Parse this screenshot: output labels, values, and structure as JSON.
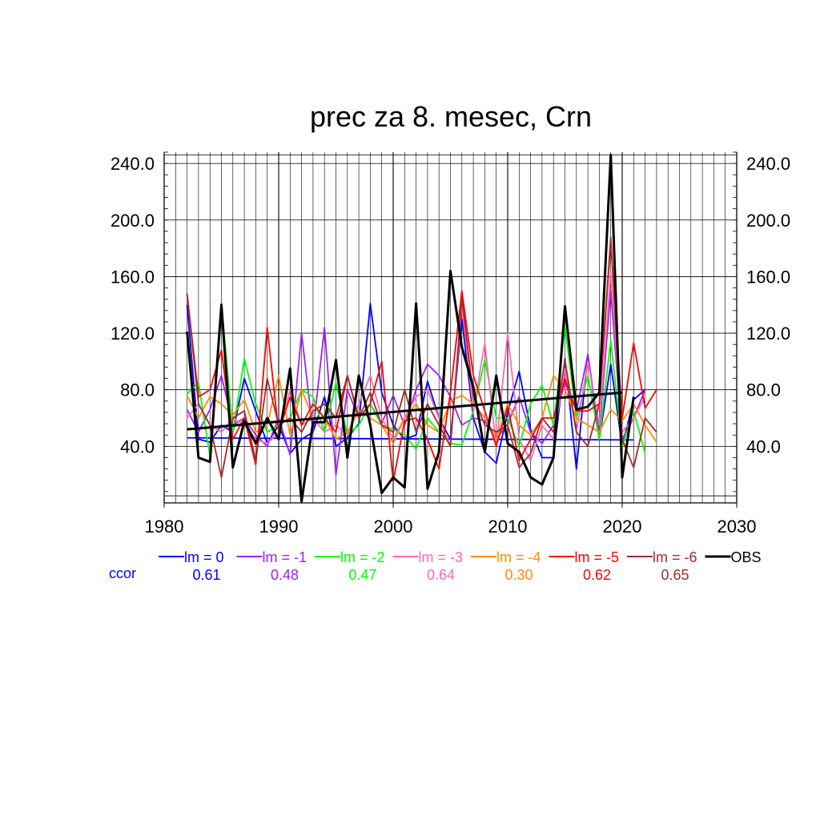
{
  "chart_data": {
    "type": "line",
    "title": "prec za 8. mesec, Crn",
    "xlim": [
      1980,
      2030
    ],
    "ylim": [
      0,
      248
    ],
    "x_ticks": [
      1980,
      1990,
      2000,
      2010,
      2020,
      2030
    ],
    "x_tick_labels": [
      "1980",
      "1990",
      "2000",
      "2010",
      "2020",
      "2030"
    ],
    "y_ticks": [
      40,
      80,
      120,
      160,
      200,
      240
    ],
    "y_tick_labels": [
      "40.0",
      "80.0",
      "120.0",
      "160.0",
      "200.0",
      "240.0"
    ],
    "grid": true,
    "ccor_label": "ccor",
    "series": [
      {
        "name": "lm = 0",
        "color": "#0000ff",
        "ccor": "0.61",
        "start_year": 1982,
        "values": [
          140,
          45,
          43,
          55,
          50,
          88,
          65,
          42,
          55,
          35,
          45,
          50,
          75,
          40,
          46,
          56,
          141,
          78,
          55,
          45,
          48,
          86,
          60,
          45,
          130,
          60,
          36,
          28,
          64,
          93,
          52,
          32,
          32,
          102,
          24,
          105,
          45,
          98,
          40,
          73,
          80
        ],
        "trend": [
          46,
          44.5
        ]
      },
      {
        "name": "lm = -1",
        "color": "#a020f0",
        "ccor": "0.48",
        "start_year": 1982,
        "values": [
          66,
          50,
          66,
          90,
          55,
          60,
          48,
          40,
          60,
          34,
          120,
          50,
          124,
          20,
          80,
          60,
          70,
          56,
          76,
          55,
          80,
          98,
          90,
          75,
          55,
          60,
          58,
          45,
          56,
          75,
          50,
          42,
          55,
          85,
          65,
          105,
          50,
          150,
          45,
          60,
          80
        ]
      },
      {
        "name": "lm = -2",
        "color": "#00ff00",
        "ccor": "0.47",
        "start_year": 1982,
        "values": [
          77,
          85,
          33,
          142,
          50,
          102,
          70,
          50,
          55,
          60,
          80,
          75,
          50,
          85,
          48,
          55,
          70,
          55,
          52,
          48,
          38,
          60,
          50,
          42,
          41,
          65,
          101,
          60,
          60,
          40,
          70,
          83,
          55,
          125,
          60,
          90,
          45,
          115,
          40,
          65,
          35
        ]
      },
      {
        "name": "lm = -3",
        "color": "#ff69b4",
        "ccor": "0.64",
        "start_year": 1982,
        "values": [
          60,
          70,
          55,
          50,
          60,
          55,
          45,
          42,
          50,
          80,
          55,
          60,
          50,
          55,
          48,
          70,
          90,
          60,
          45,
          60,
          75,
          80,
          60,
          40,
          140,
          65,
          113,
          40,
          120,
          45,
          30,
          55,
          45,
          95,
          50,
          100,
          55,
          163,
          50,
          60,
          75
        ]
      },
      {
        "name": "lm = -4",
        "color": "#ff8c00",
        "ccor": "0.30",
        "start_year": 1982,
        "values": [
          76,
          60,
          75,
          70,
          62,
          73,
          50,
          55,
          90,
          48,
          80,
          60,
          60,
          45,
          50,
          65,
          60,
          55,
          42,
          60,
          70,
          55,
          50,
          72,
          76,
          70,
          60,
          45,
          70,
          55,
          48,
          60,
          90,
          80,
          60,
          55,
          50,
          66,
          58,
          70,
          55,
          43
        ]
      },
      {
        "name": "lm = -5",
        "color": "#ff0000",
        "ccor": "0.62",
        "start_year": 1982,
        "values": [
          148,
          75,
          80,
          108,
          45,
          60,
          27,
          124,
          50,
          75,
          55,
          70,
          60,
          50,
          90,
          60,
          70,
          100,
          15,
          58,
          60,
          45,
          24,
          78,
          150,
          90,
          65,
          40,
          68,
          30,
          45,
          60,
          60,
          88,
          65,
          65,
          70,
          185,
          60,
          113,
          67,
          80
        ]
      },
      {
        "name": "lm = -6",
        "color": "#a52a2a",
        "ccor": "0.65",
        "start_year": 1982,
        "values": [
          148,
          70,
          55,
          18,
          60,
          65,
          30,
          88,
          55,
          60,
          50,
          65,
          70,
          60,
          90,
          60,
          78,
          55,
          50,
          80,
          50,
          70,
          55,
          40,
          145,
          75,
          55,
          50,
          55,
          25,
          35,
          60,
          50,
          101,
          50,
          40,
          70,
          188,
          45,
          25,
          60,
          50
        ]
      },
      {
        "name": "OBS",
        "color": "#000000",
        "ccor": "",
        "start_year": 1982,
        "values": [
          121,
          32,
          29,
          140,
          25,
          58,
          42,
          60,
          45,
          95,
          1,
          57,
          57,
          101,
          32,
          90,
          55,
          7,
          18,
          11,
          141,
          10,
          36,
          164,
          110,
          82,
          36,
          90,
          42,
          36,
          18,
          13,
          32,
          139,
          66,
          68,
          78,
          246,
          18,
          75
        ],
        "trend": [
          52,
          78
        ]
      }
    ]
  }
}
